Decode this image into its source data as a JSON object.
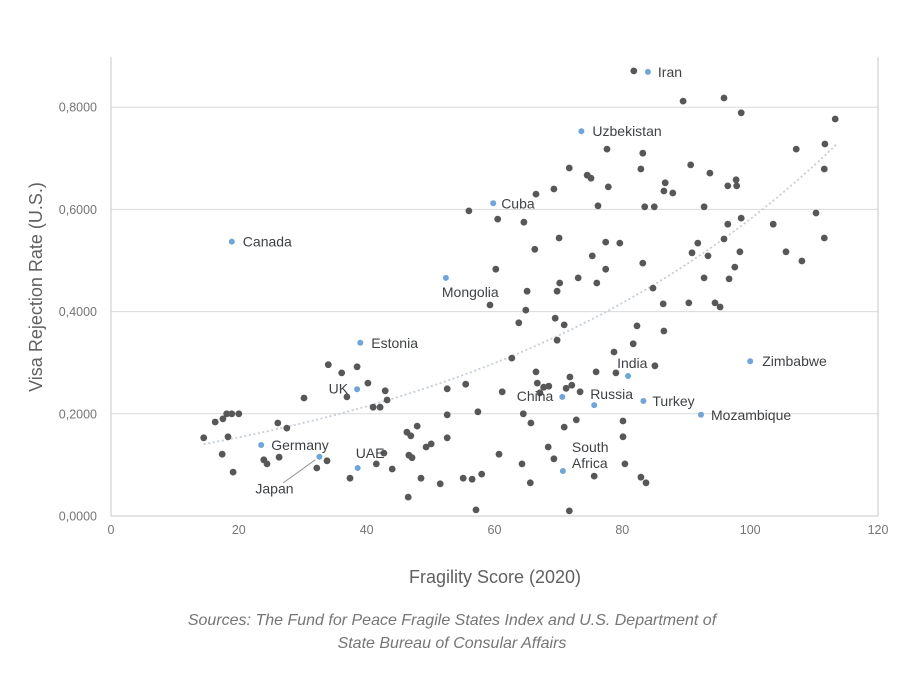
{
  "page": {
    "background": "#ffffff"
  },
  "chart_data": {
    "type": "scatter",
    "title": "",
    "xlabel": "Fragility Score (2020)",
    "ylabel": "Visa Rejection Rate (U.S.)",
    "source_note": [
      "Sources: The Fund for Peace Fragile States Index and U.S. Department of",
      "State Bureau of Consular Affairs"
    ],
    "xlim": [
      0,
      120
    ],
    "ylim": [
      0,
      0.9
    ],
    "grid": "horizontal",
    "x_ticks": [
      0,
      20,
      40,
      60,
      80,
      100,
      120
    ],
    "x_tick_labels": [
      "0",
      "20",
      "40",
      "60",
      "80",
      "100",
      "120"
    ],
    "y_ticks": [
      0,
      0.2,
      0.4,
      0.6,
      0.8
    ],
    "y_tick_labels": [
      "0,0000",
      "0,2000",
      "0,4000",
      "0,6000",
      "0,8000"
    ],
    "colors": {
      "unlabeled_point": "#575757",
      "labeled_point": "#6fa5d8",
      "gridline": "#dadada",
      "axis_frame": "#c8c8c8",
      "trend": "#c5ced6",
      "label_text": "#3f4245"
    },
    "trend": {
      "kind": "exponential",
      "formula": "y = 0.1105 * exp(0.0166 * x)",
      "a": 0.1105,
      "b": 0.0166,
      "x_start": 14.5,
      "x_end": 113.5,
      "style": "dotted"
    },
    "series": [
      {
        "name": "Countries (unlabeled)",
        "color": "#575757",
        "points": [
          [
            81.8,
            0.871
          ],
          [
            89.5,
            0.812
          ],
          [
            95.9,
            0.818
          ],
          [
            98.6,
            0.789
          ],
          [
            113.3,
            0.777
          ],
          [
            111.7,
            0.728
          ],
          [
            107.2,
            0.718
          ],
          [
            77.6,
            0.718
          ],
          [
            83.2,
            0.71
          ],
          [
            71.7,
            0.681
          ],
          [
            82.9,
            0.679
          ],
          [
            90.7,
            0.687
          ],
          [
            74.5,
            0.667
          ],
          [
            75.1,
            0.661
          ],
          [
            93.7,
            0.671
          ],
          [
            111.6,
            0.679
          ],
          [
            77.8,
            0.644
          ],
          [
            86.7,
            0.652
          ],
          [
            86.5,
            0.636
          ],
          [
            87.9,
            0.632
          ],
          [
            96.5,
            0.646
          ],
          [
            97.8,
            0.658
          ],
          [
            97.9,
            0.646
          ],
          [
            66.5,
            0.63
          ],
          [
            69.3,
            0.64
          ],
          [
            56.0,
            0.597
          ],
          [
            76.2,
            0.607
          ],
          [
            83.5,
            0.605
          ],
          [
            85.0,
            0.605
          ],
          [
            92.8,
            0.605
          ],
          [
            110.3,
            0.593
          ],
          [
            60.5,
            0.581
          ],
          [
            64.6,
            0.575
          ],
          [
            98.6,
            0.583
          ],
          [
            96.5,
            0.571
          ],
          [
            103.6,
            0.571
          ],
          [
            70.1,
            0.544
          ],
          [
            77.4,
            0.536
          ],
          [
            79.6,
            0.534
          ],
          [
            95.9,
            0.542
          ],
          [
            91.8,
            0.534
          ],
          [
            111.6,
            0.544
          ],
          [
            66.3,
            0.522
          ],
          [
            75.3,
            0.509
          ],
          [
            90.9,
            0.515
          ],
          [
            93.4,
            0.509
          ],
          [
            98.4,
            0.517
          ],
          [
            105.6,
            0.517
          ],
          [
            108.1,
            0.499
          ],
          [
            60.2,
            0.483
          ],
          [
            77.4,
            0.483
          ],
          [
            83.2,
            0.495
          ],
          [
            97.6,
            0.487
          ],
          [
            73.1,
            0.466
          ],
          [
            92.8,
            0.466
          ],
          [
            96.7,
            0.464
          ],
          [
            84.8,
            0.446
          ],
          [
            70.2,
            0.456
          ],
          [
            76.0,
            0.456
          ],
          [
            69.8,
            0.44
          ],
          [
            65.1,
            0.44
          ],
          [
            59.3,
            0.413
          ],
          [
            64.9,
            0.403
          ],
          [
            63.8,
            0.378
          ],
          [
            69.5,
            0.387
          ],
          [
            70.9,
            0.374
          ],
          [
            69.8,
            0.344
          ],
          [
            62.7,
            0.309
          ],
          [
            78.7,
            0.321
          ],
          [
            86.4,
            0.415
          ],
          [
            90.4,
            0.417
          ],
          [
            94.5,
            0.417
          ],
          [
            95.3,
            0.409
          ],
          [
            82.3,
            0.372
          ],
          [
            86.5,
            0.362
          ],
          [
            81.7,
            0.337
          ],
          [
            85.1,
            0.294
          ],
          [
            75.9,
            0.282
          ],
          [
            79.0,
            0.28
          ],
          [
            71.8,
            0.272
          ],
          [
            72.1,
            0.256
          ],
          [
            71.2,
            0.25
          ],
          [
            73.4,
            0.243
          ],
          [
            66.5,
            0.282
          ],
          [
            66.7,
            0.26
          ],
          [
            67.7,
            0.252
          ],
          [
            68.5,
            0.254
          ],
          [
            67.1,
            0.241
          ],
          [
            61.2,
            0.243
          ],
          [
            55.5,
            0.258
          ],
          [
            52.6,
            0.249
          ],
          [
            40.2,
            0.26
          ],
          [
            42.9,
            0.245
          ],
          [
            43.2,
            0.227
          ],
          [
            41.0,
            0.213
          ],
          [
            42.1,
            0.213
          ],
          [
            30.2,
            0.231
          ],
          [
            34.0,
            0.296
          ],
          [
            36.1,
            0.28
          ],
          [
            38.5,
            0.292
          ],
          [
            36.9,
            0.233
          ],
          [
            16.3,
            0.184
          ],
          [
            17.5,
            0.19
          ],
          [
            18.1,
            0.2
          ],
          [
            18.9,
            0.2
          ],
          [
            20.0,
            0.2
          ],
          [
            26.1,
            0.182
          ],
          [
            27.5,
            0.172
          ],
          [
            14.5,
            0.153
          ],
          [
            18.3,
            0.155
          ],
          [
            17.4,
            0.121
          ],
          [
            19.1,
            0.086
          ],
          [
            23.9,
            0.11
          ],
          [
            24.4,
            0.102
          ],
          [
            26.3,
            0.115
          ],
          [
            33.8,
            0.108
          ],
          [
            32.2,
            0.094
          ],
          [
            37.4,
            0.074
          ],
          [
            41.5,
            0.102
          ],
          [
            42.7,
            0.123
          ],
          [
            44.0,
            0.092
          ],
          [
            46.3,
            0.164
          ],
          [
            47.9,
            0.176
          ],
          [
            46.9,
            0.157
          ],
          [
            52.6,
            0.153
          ],
          [
            49.3,
            0.135
          ],
          [
            50.1,
            0.141
          ],
          [
            46.6,
            0.119
          ],
          [
            47.1,
            0.114
          ],
          [
            48.5,
            0.074
          ],
          [
            51.5,
            0.063
          ],
          [
            46.5,
            0.037
          ],
          [
            52.6,
            0.198
          ],
          [
            57.4,
            0.204
          ],
          [
            55.1,
            0.074
          ],
          [
            56.5,
            0.072
          ],
          [
            58.0,
            0.082
          ],
          [
            60.7,
            0.121
          ],
          [
            57.1,
            0.012
          ],
          [
            64.5,
            0.2
          ],
          [
            65.7,
            0.182
          ],
          [
            65.6,
            0.065
          ],
          [
            64.3,
            0.102
          ],
          [
            68.4,
            0.135
          ],
          [
            69.3,
            0.112
          ],
          [
            71.7,
            0.01
          ],
          [
            72.8,
            0.188
          ],
          [
            70.9,
            0.174
          ],
          [
            75.6,
            0.078
          ],
          [
            80.1,
            0.186
          ],
          [
            80.1,
            0.155
          ],
          [
            80.4,
            0.102
          ],
          [
            82.9,
            0.076
          ],
          [
            83.7,
            0.065
          ]
        ]
      },
      {
        "name": "Highlighted countries",
        "color": "#6fa5d8",
        "points": [
          {
            "label": "Canada",
            "x": 18.9,
            "y": 0.537
          },
          {
            "label": "Iran",
            "x": 84.0,
            "y": 0.869
          },
          {
            "label": "Uzbekistan",
            "x": 73.6,
            "y": 0.753
          },
          {
            "label": "Cuba",
            "x": 59.8,
            "y": 0.612
          },
          {
            "label": "Mongolia",
            "x": 52.4,
            "y": 0.466
          },
          {
            "label": "Estonia",
            "x": 39.0,
            "y": 0.339
          },
          {
            "label": "UK",
            "x": 38.5,
            "y": 0.248
          },
          {
            "label": "Germany",
            "x": 23.5,
            "y": 0.139
          },
          {
            "label": "Japan",
            "x": 32.6,
            "y": 0.116
          },
          {
            "label": "UAE",
            "x": 38.6,
            "y": 0.094
          },
          {
            "label": "China",
            "x": 70.6,
            "y": 0.233
          },
          {
            "label": "Russia",
            "x": 75.6,
            "y": 0.217
          },
          {
            "label": "South Africa",
            "label_lines": [
              "South",
              "Africa"
            ],
            "x": 70.7,
            "y": 0.088
          },
          {
            "label": "India",
            "x": 80.9,
            "y": 0.274
          },
          {
            "label": "Turkey",
            "x": 83.3,
            "y": 0.225
          },
          {
            "label": "Zimbabwe",
            "x": 100.0,
            "y": 0.303
          },
          {
            "label": "Mozambique",
            "x": 92.3,
            "y": 0.198
          }
        ]
      }
    ]
  }
}
